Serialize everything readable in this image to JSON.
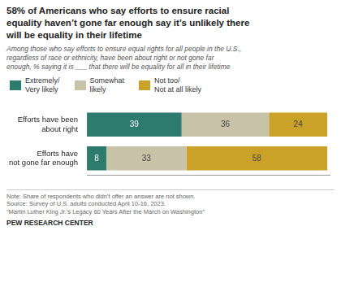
{
  "chart_data": {
    "type": "bar",
    "orientation": "horizontal",
    "stacked": true,
    "data_labels": true,
    "grid": false,
    "legend": "top",
    "tick_labels": false,
    "title": "58% of Americans who say efforts to ensure racial\nequality haven’t gone far enough say it’s unlikely there\nwill be equality in their lifetime",
    "subtitle": "Among those who say efforts to ensure equal rights for all people in the U.S.,\nregardless of race or ethnicity, have been about right or not gone far\nenough, % saying it is ___ that there will be equality for all in their lifetime",
    "categories": [
      "Efforts have been\nabout right",
      "Efforts have\nnot gone far enough"
    ],
    "series": [
      {
        "name": "Extremely/\nVery likely",
        "color": "#2d7a6e",
        "values": [
          39,
          8
        ]
      },
      {
        "name": "Somewhat\nlikely",
        "color": "#c8c2a8",
        "values": [
          36,
          33
        ]
      },
      {
        "name": "Not too/\nNot at all likely",
        "color": "#c9a227",
        "values": [
          24,
          58
        ]
      }
    ],
    "xlim": [
      0,
      100
    ],
    "annotations": [
      "Note: Share of respondents who didn’t offer an answer are not shown.",
      "Source: Survey of U.S. adults conducted April 10-16, 2023.",
      "“Martin Luther King Jr.’s Legacy 60 Years After the March on Washington”",
      "PEW RESEARCH CENTER"
    ]
  }
}
